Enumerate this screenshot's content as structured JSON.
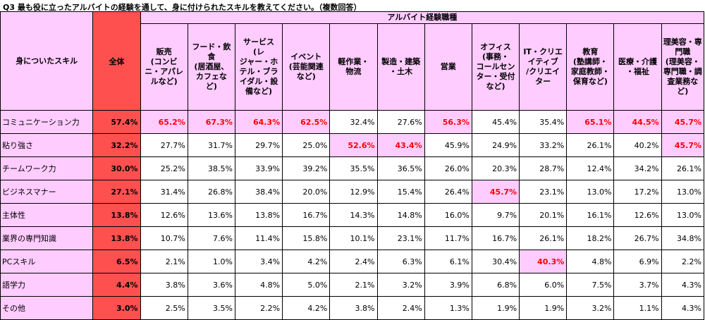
{
  "title": "Q3 最も役に立ったアルバイトの経験を通して、身に付けられたスキルを教えてください。（複数回答）",
  "colors": {
    "header_bg": "#ffccff",
    "total_bg": "#ff5050",
    "highlight_text": "#ff0000"
  },
  "chart_data": {
    "type": "table",
    "title": "Q3 最も役に立ったアルバイトの経験を通して、身に付けられたスキルを教えてください。（複数回答）",
    "row_header": "身についたスキル",
    "total_header": "全体",
    "group_header": "アルバイト経験職種",
    "columns": [
      "販売\n(コンビ\nニ・アパレ\nルなど)",
      "フード・飲\n食\n(居酒屋、\nカフェな\nど)",
      "サービス\n(レ\nジャー・ホ\nテル・ブラ\nイダル・設\n備など)",
      "イベント\n(芸能関連\nなど)",
      "軽作業・\n物流",
      "製造・建築\n・土木",
      "営業",
      "オフィス\n(事務・\nコールセン\nター・受付\nなど)",
      "IT・クリエ\nイティブ\n/クリエイ\nター",
      "教育\n(塾講師・\n家庭教師・\n保育など)",
      "医療・介護\n・福祉",
      "理美容・専\n門職\n(理美容・\n専門職・調\n査業務な\nど)"
    ],
    "rows": [
      {
        "label": "コミュニケーション力",
        "total": "57.4%",
        "values": [
          "65.2%",
          "67.3%",
          "64.3%",
          "62.5%",
          "32.4%",
          "27.6%",
          "56.3%",
          "45.4%",
          "35.4%",
          "65.1%",
          "44.5%",
          "45.7%"
        ],
        "highlight": [
          true,
          true,
          true,
          true,
          false,
          false,
          true,
          false,
          false,
          true,
          true,
          true
        ]
      },
      {
        "label": "粘り強さ",
        "total": "32.2%",
        "values": [
          "27.7%",
          "31.7%",
          "29.7%",
          "25.0%",
          "52.6%",
          "43.4%",
          "45.9%",
          "24.9%",
          "33.2%",
          "26.1%",
          "40.2%",
          "45.7%"
        ],
        "highlight": [
          false,
          false,
          false,
          false,
          true,
          true,
          false,
          false,
          false,
          false,
          false,
          true
        ]
      },
      {
        "label": "チームワーク力",
        "total": "30.0%",
        "values": [
          "25.2%",
          "38.5%",
          "33.9%",
          "39.2%",
          "35.5%",
          "36.5%",
          "26.0%",
          "20.3%",
          "28.7%",
          "12.4%",
          "34.2%",
          "26.1%"
        ],
        "highlight": [
          false,
          false,
          false,
          false,
          false,
          false,
          false,
          false,
          false,
          false,
          false,
          false
        ]
      },
      {
        "label": "ビジネスマナー",
        "total": "27.1%",
        "values": [
          "31.4%",
          "26.8%",
          "38.4%",
          "20.0%",
          "12.9%",
          "15.4%",
          "26.4%",
          "45.7%",
          "23.1%",
          "13.0%",
          "17.2%",
          "13.0%"
        ],
        "highlight": [
          false,
          false,
          false,
          false,
          false,
          false,
          false,
          true,
          false,
          false,
          false,
          false
        ]
      },
      {
        "label": "主体性",
        "total": "13.8%",
        "values": [
          "12.6%",
          "13.6%",
          "13.8%",
          "16.7%",
          "14.3%",
          "14.8%",
          "16.0%",
          "9.7%",
          "20.1%",
          "16.1%",
          "12.6%",
          "13.0%"
        ],
        "highlight": [
          false,
          false,
          false,
          false,
          false,
          false,
          false,
          false,
          false,
          false,
          false,
          false
        ]
      },
      {
        "label": "業界の専門知識",
        "total": "13.8%",
        "values": [
          "10.7%",
          "7.6%",
          "11.4%",
          "15.8%",
          "10.1%",
          "23.1%",
          "11.7%",
          "16.7%",
          "26.1%",
          "18.2%",
          "26.7%",
          "34.8%"
        ],
        "highlight": [
          false,
          false,
          false,
          false,
          false,
          false,
          false,
          false,
          false,
          false,
          false,
          false
        ]
      },
      {
        "label": "PCスキル",
        "total": "6.5%",
        "values": [
          "2.1%",
          "1.0%",
          "3.4%",
          "4.2%",
          "2.4%",
          "6.3%",
          "6.1%",
          "30.4%",
          "40.3%",
          "4.8%",
          "6.9%",
          "2.2%"
        ],
        "highlight": [
          false,
          false,
          false,
          false,
          false,
          false,
          false,
          false,
          true,
          false,
          false,
          false
        ]
      },
      {
        "label": "語学力",
        "total": "4.4%",
        "values": [
          "3.8%",
          "3.6%",
          "4.8%",
          "5.0%",
          "2.1%",
          "3.2%",
          "3.9%",
          "6.8%",
          "6.0%",
          "7.5%",
          "3.7%",
          "4.3%"
        ],
        "highlight": [
          false,
          false,
          false,
          false,
          false,
          false,
          false,
          false,
          false,
          false,
          false,
          false
        ]
      },
      {
        "label": "その他",
        "total": "3.0%",
        "values": [
          "2.5%",
          "3.5%",
          "2.2%",
          "4.2%",
          "3.8%",
          "2.4%",
          "1.3%",
          "1.9%",
          "1.9%",
          "3.2%",
          "1.1%",
          "4.3%"
        ],
        "highlight": [
          false,
          false,
          false,
          false,
          false,
          false,
          false,
          false,
          false,
          false,
          false,
          false
        ]
      }
    ]
  }
}
